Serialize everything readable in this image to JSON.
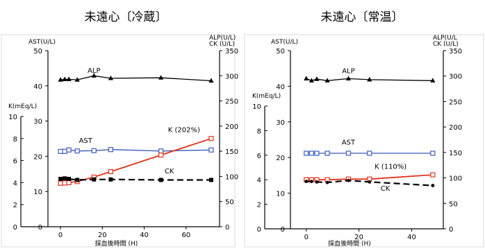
{
  "chart_data": [
    {
      "type": "line",
      "title": "未遠心〔冷蔵〕",
      "x": {
        "label": "採血後時間 (H)",
        "range": [
          -6,
          76
        ],
        "ticks": [
          0,
          20,
          40,
          60
        ],
        "tick_labels": [
          "0",
          "20",
          "40",
          "60"
        ]
      },
      "y_axes": {
        "ast": {
          "label": "AST(U/L)",
          "range": [
            0,
            50
          ],
          "ticks": [
            0,
            10,
            20,
            30,
            40,
            50
          ],
          "tick_labels": [
            "0",
            "10",
            "20",
            "30",
            "40",
            "50"
          ]
        },
        "k": {
          "label": "K(mEq/L)",
          "range": [
            0,
            10
          ],
          "ticks": [
            2,
            4,
            6,
            8,
            10
          ],
          "tick_labels": [
            "2",
            "4",
            "6",
            "8",
            "10"
          ]
        },
        "right": {
          "label_lines": [
            "ALP(U/L)",
            "CK (U/L)"
          ],
          "range": [
            0,
            350
          ],
          "ticks": [
            0,
            50,
            100,
            150,
            200,
            250,
            300,
            350
          ],
          "tick_labels": [
            "0",
            "50",
            "100",
            "150",
            "200",
            "250",
            "300",
            "350"
          ]
        }
      },
      "series": [
        {
          "name": "ALP",
          "axis": "right",
          "color": "#000000",
          "marker": "filled-triangle",
          "dash": "solid",
          "points": [
            [
              0,
              292
            ],
            [
              2,
              293
            ],
            [
              4,
              293
            ],
            [
              8,
              292
            ],
            [
              16,
              300
            ],
            [
              24,
              295
            ],
            [
              48,
              296
            ],
            [
              72,
              290
            ]
          ],
          "label_at": [
            16,
            306
          ]
        },
        {
          "name": "AST",
          "axis": "ast",
          "color": "#3a5bb8",
          "marker": "hollow-square",
          "dash": "solid",
          "points": [
            [
              0,
              21.4
            ],
            [
              2,
              21.4
            ],
            [
              4,
              21.8
            ],
            [
              8,
              21.5
            ],
            [
              16,
              21.6
            ],
            [
              24,
              21.9
            ],
            [
              48,
              21.5
            ],
            [
              72,
              21.8
            ]
          ],
          "label_at": [
            12,
            23.8
          ]
        },
        {
          "name": "K (202%)",
          "axis": "k",
          "color": "#e2311d",
          "marker": "hollow-square",
          "dash": "solid",
          "points": [
            [
              0,
              3.95
            ],
            [
              2,
              3.97
            ],
            [
              4,
              4.0
            ],
            [
              8,
              4.1
            ],
            [
              16,
              4.5
            ],
            [
              24,
              5.0
            ],
            [
              48,
              6.5
            ],
            [
              72,
              8.0
            ]
          ],
          "label_at": [
            59,
            8.6
          ]
        },
        {
          "name": "CK",
          "axis": "right",
          "color": "#000000",
          "marker": "filled-square",
          "dash": "dashed",
          "points": [
            [
              0,
              95
            ],
            [
              2,
              96
            ],
            [
              4,
              95
            ],
            [
              8,
              93
            ],
            [
              16,
              94
            ],
            [
              24,
              94
            ],
            [
              48,
              93
            ],
            [
              72,
              93
            ]
          ],
          "label_at": [
            52,
            106
          ]
        }
      ]
    },
    {
      "type": "line",
      "title": "未遠心〔常温〕",
      "x": {
        "label": "採血後時間 (H)",
        "range": [
          -6,
          52
        ],
        "ticks": [
          0,
          20,
          40
        ],
        "tick_labels": [
          "0",
          "20",
          "40"
        ]
      },
      "y_axes": {
        "ast": {
          "label": "AST(U/L)",
          "range": [
            0,
            50
          ],
          "ticks": [
            0,
            10,
            20,
            30,
            40,
            50
          ],
          "tick_labels": [
            "0",
            "10",
            "20",
            "30",
            "40",
            "50"
          ]
        },
        "k": {
          "label": "K(mEq/L)",
          "range": [
            0,
            10
          ],
          "ticks": [
            2,
            4,
            6,
            8,
            10
          ],
          "tick_labels": [
            "2",
            "4",
            "6",
            "8",
            "10"
          ]
        },
        "right": {
          "label_lines": [
            "ALP(U/L",
            "CK (U/L)"
          ],
          "range": [
            0,
            350
          ],
          "ticks": [
            0,
            50,
            100,
            150,
            200,
            250,
            300,
            350
          ],
          "tick_labels": [
            "0",
            "50",
            "100",
            "150",
            "200",
            "250",
            "300",
            "350"
          ]
        }
      },
      "series": [
        {
          "name": "ALP",
          "axis": "right",
          "color": "#000000",
          "marker": "filled-triangle",
          "dash": "solid",
          "points": [
            [
              0,
              295
            ],
            [
              2,
              291
            ],
            [
              4,
              294
            ],
            [
              8,
              291
            ],
            [
              16,
              295
            ],
            [
              24,
              293
            ],
            [
              48,
              291
            ]
          ],
          "label_at": [
            16,
            306
          ]
        },
        {
          "name": "AST",
          "axis": "ast",
          "color": "#3a5bb8",
          "marker": "hollow-square",
          "dash": "solid",
          "points": [
            [
              0,
              21.2
            ],
            [
              2,
              21.2
            ],
            [
              4,
              21.2
            ],
            [
              8,
              21.2
            ],
            [
              16,
              21.2
            ],
            [
              24,
              21.2
            ],
            [
              48,
              21.2
            ]
          ],
          "label_at": [
            16,
            23.6
          ]
        },
        {
          "name": "K (110%)",
          "axis": "k",
          "color": "#e2311d",
          "marker": "hollow-square",
          "dash": "solid",
          "points": [
            [
              0,
              4.0
            ],
            [
              2,
              4.0
            ],
            [
              4,
              4.0
            ],
            [
              8,
              4.0
            ],
            [
              16,
              4.05
            ],
            [
              24,
              4.05
            ],
            [
              48,
              4.4
            ]
          ],
          "label_at": [
            32,
            4.9
          ]
        },
        {
          "name": "CK",
          "axis": "right",
          "color": "#000000",
          "marker": "filled-dot",
          "dash": "dashed",
          "points": [
            [
              0,
              93
            ],
            [
              2,
              93
            ],
            [
              4,
              92
            ],
            [
              8,
              91
            ],
            [
              16,
              95
            ],
            [
              24,
              92
            ],
            [
              48,
              85
            ]
          ],
          "label_at": [
            30,
            75
          ]
        }
      ]
    }
  ]
}
